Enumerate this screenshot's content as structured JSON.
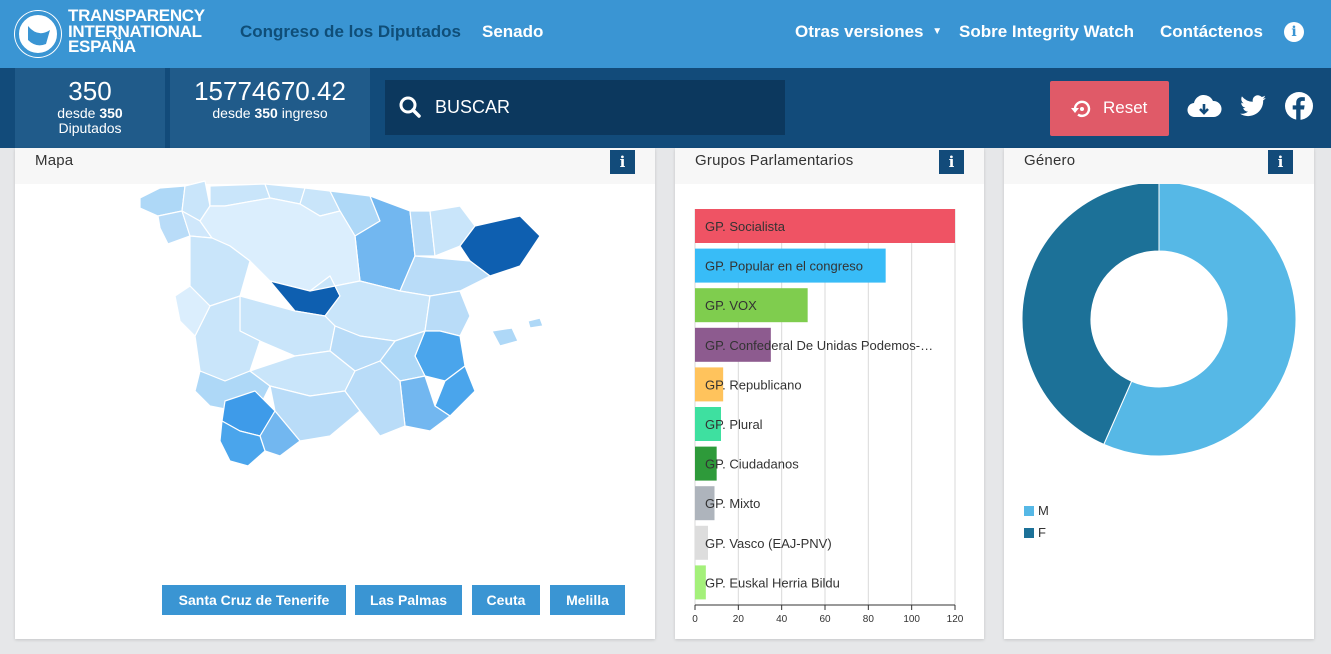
{
  "brand": {
    "logo_lines": [
      "TRANSPARENCY",
      "INTERNATIONAL",
      "ESPAÑA"
    ]
  },
  "nav": {
    "congreso": "Congreso de los Diputados",
    "senado": "Senado",
    "otras": "Otras versiones",
    "sobre": "Sobre Integrity Watch",
    "contact": "Contáctenos"
  },
  "stats": {
    "diputados": {
      "value": "350",
      "prefix": "desde",
      "total": "350",
      "unit": "Diputados"
    },
    "ingresos": {
      "value": "15774670.42",
      "prefix": "desde",
      "total": "350",
      "unit": "ingreso"
    }
  },
  "search": {
    "placeholder": "BUSCAR"
  },
  "reset_label": "Reset",
  "icons": {
    "download": "cloud-download-icon",
    "twitter": "twitter-icon",
    "facebook": "facebook-icon",
    "info": "info-icon",
    "search": "search-icon",
    "reset": "reset-icon"
  },
  "colors": {
    "primary": "#3a95d3",
    "dark": "#124b7a",
    "reset": "#e05a68"
  },
  "mapa": {
    "title": "Mapa",
    "info": "i",
    "buttons": [
      "Santa Cruz de Tenerife",
      "Las Palmas",
      "Ceuta",
      "Melilla"
    ]
  },
  "grupos": {
    "title": "Grupos Parlamentarios",
    "info": "i"
  },
  "genero": {
    "title": "Género",
    "info": "i"
  },
  "chart_data": [
    {
      "type": "bar",
      "orientation": "horizontal",
      "title": "Grupos Parlamentarios",
      "categories": [
        "GP. Socialista",
        "GP. Popular en el congreso",
        "GP. VOX",
        "GP. Confederal De Unidas Podemos-…",
        "GP. Republicano",
        "GP. Plural",
        "GP. Ciudadanos",
        "GP. Mixto",
        "GP. Vasco (EAJ-PNV)",
        "GP. Euskal Herria Bildu"
      ],
      "values": [
        120,
        88,
        52,
        35,
        13,
        12,
        10,
        9,
        6,
        5
      ],
      "colors": [
        "#ef5364",
        "#38bcf7",
        "#7fcd4e",
        "#8d5b8f",
        "#ffc35c",
        "#3ee0a0",
        "#2e9a3a",
        "#aeb4bc",
        "#dddddd",
        "#a4f07a"
      ],
      "xlim": [
        0,
        120
      ],
      "xticks": [
        0,
        20,
        40,
        60,
        80,
        100,
        120
      ],
      "grid": true
    },
    {
      "type": "pie",
      "donut": true,
      "title": "Género",
      "categories": [
        "M",
        "F"
      ],
      "values": [
        56.6,
        43.4
      ],
      "colors": [
        "#56b8e6",
        "#1c7198"
      ],
      "legend": "bottom-left"
    }
  ]
}
